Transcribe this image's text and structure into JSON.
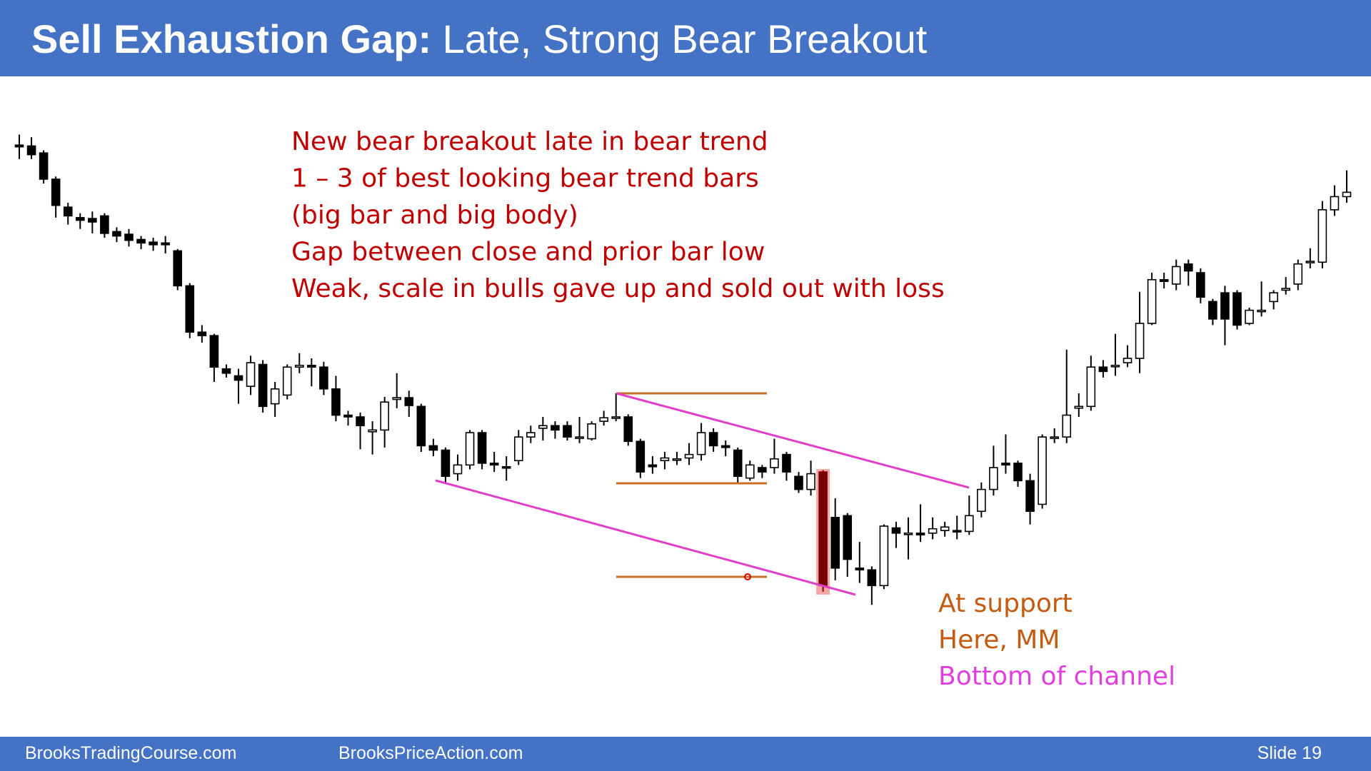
{
  "header": {
    "title_bold": "Sell Exhaustion Gap:",
    "title_rest": "Late, Strong Bear Breakout"
  },
  "notes": [
    "New bear breakout late in bear trend",
    "1 – 3 of best looking bear trend bars",
    "(big bar and big body)",
    "Gap between close and prior bar low",
    "Weak, scale in bulls gave up and sold out with loss"
  ],
  "annotations": [
    {
      "text": "At support",
      "color": "#c55a11"
    },
    {
      "text": "Here, MM",
      "color": "#c55a11"
    },
    {
      "text": "Bottom of channel",
      "color": "#e040e0"
    }
  ],
  "footer": {
    "left": "BrooksTradingCourse.com",
    "middle": "BrooksPriceAction.com",
    "slide": "Slide  19"
  },
  "chart_data": {
    "type": "candlestick",
    "ylim": [
      182,
      742
    ],
    "bear_color": "#000000",
    "bull_color": "#ffffff",
    "outline": "#000000",
    "highlight": {
      "index": 66,
      "color": "#7b0000",
      "glow": "#f08080"
    },
    "open": [
      716,
      715,
      707,
      677,
      645,
      633,
      632,
      635,
      617,
      614,
      608,
      605,
      604,
      595,
      555,
      502,
      498,
      460,
      452,
      440,
      465,
      420,
      430,
      462,
      464,
      462,
      437,
      407,
      405,
      388,
      390,
      425,
      427,
      417,
      372,
      367,
      340,
      350,
      387,
      352,
      348,
      355,
      382,
      392,
      395,
      395,
      382,
      380,
      400,
      404,
      405,
      377,
      350,
      355,
      357,
      358,
      362,
      387,
      372,
      367,
      335,
      347,
      347,
      362,
      337,
      322,
      342,
      290,
      292,
      232,
      230,
      212,
      278,
      272,
      272,
      272,
      275,
      275,
      274,
      297,
      322,
      352,
      352,
      332,
      305,
      382,
      382,
      415,
      417,
      462,
      464,
      467,
      472,
      512,
      562,
      557,
      580,
      570,
      537,
      547,
      547,
      512,
      527,
      537,
      550,
      557,
      582,
      582,
      642,
      657
    ],
    "high": [
      728,
      725,
      710,
      680,
      650,
      638,
      640,
      638,
      622,
      620,
      612,
      610,
      612,
      597,
      558,
      510,
      500,
      465,
      460,
      475,
      470,
      445,
      465,
      478,
      472,
      468,
      452,
      412,
      410,
      400,
      428,
      455,
      435,
      420,
      380,
      370,
      362,
      390,
      390,
      365,
      360,
      390,
      395,
      405,
      400,
      400,
      405,
      400,
      412,
      432,
      408,
      380,
      360,
      365,
      365,
      375,
      398,
      392,
      378,
      370,
      355,
      350,
      380,
      365,
      342,
      355,
      344,
      312,
      295,
      262,
      234,
      282,
      285,
      290,
      305,
      290,
      285,
      292,
      315,
      330,
      372,
      385,
      355,
      340,
      385,
      392,
      482,
      432,
      475,
      470,
      500,
      487,
      548,
      570,
      570,
      585,
      585,
      575,
      540,
      555,
      550,
      530,
      560,
      550,
      565,
      585,
      598,
      652,
      670,
      687
    ],
    "low": [
      700,
      700,
      672,
      633,
      625,
      620,
      615,
      610,
      605,
      600,
      597,
      595,
      592,
      550,
      495,
      490,
      445,
      450,
      420,
      430,
      410,
      405,
      425,
      455,
      440,
      430,
      400,
      395,
      368,
      362,
      370,
      415,
      405,
      365,
      360,
      330,
      332,
      345,
      345,
      342,
      332,
      350,
      375,
      378,
      380,
      378,
      375,
      378,
      395,
      400,
      372,
      335,
      340,
      345,
      350,
      350,
      355,
      365,
      360,
      330,
      332,
      335,
      340,
      332,
      318,
      315,
      205,
      218,
      222,
      215,
      190,
      208,
      255,
      242,
      262,
      265,
      268,
      265,
      270,
      290,
      315,
      340,
      325,
      282,
      300,
      375,
      375,
      405,
      412,
      450,
      452,
      462,
      455,
      510,
      552,
      550,
      555,
      535,
      510,
      487,
      505,
      510,
      520,
      528,
      545,
      550,
      575,
      575,
      635,
      650
    ],
    "close": [
      714,
      705,
      677,
      647,
      635,
      630,
      628,
      615,
      612,
      607,
      604,
      602,
      602,
      555,
      502,
      498,
      462,
      455,
      447,
      467,
      417,
      437,
      462,
      464,
      462,
      437,
      407,
      405,
      395,
      390,
      422,
      427,
      418,
      372,
      367,
      337,
      350,
      387,
      352,
      350,
      347,
      382,
      387,
      395,
      390,
      382,
      382,
      397,
      404,
      405,
      377,
      342,
      348,
      358,
      357,
      362,
      387,
      372,
      370,
      337,
      350,
      342,
      357,
      342,
      322,
      340,
      212,
      232,
      242,
      230,
      212,
      280,
      272,
      272,
      270,
      277,
      279,
      274,
      292,
      322,
      347,
      350,
      332,
      297,
      382,
      382,
      407,
      417,
      462,
      457,
      464,
      472,
      512,
      562,
      560,
      577,
      572,
      542,
      517,
      517,
      510,
      527,
      527,
      547,
      552,
      580,
      583,
      642,
      657,
      662
    ]
  }
}
